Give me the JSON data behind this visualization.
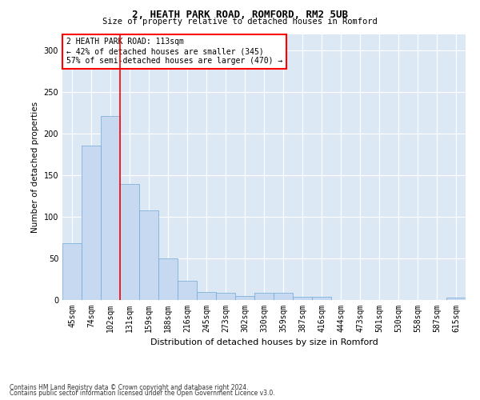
{
  "title1": "2, HEATH PARK ROAD, ROMFORD, RM2 5UB",
  "title2": "Size of property relative to detached houses in Romford",
  "xlabel": "Distribution of detached houses by size in Romford",
  "ylabel": "Number of detached properties",
  "annotation_line1": "2 HEATH PARK ROAD: 113sqm",
  "annotation_line2": "← 42% of detached houses are smaller (345)",
  "annotation_line3": "57% of semi-detached houses are larger (470) →",
  "categories": [
    "45sqm",
    "74sqm",
    "102sqm",
    "131sqm",
    "159sqm",
    "188sqm",
    "216sqm",
    "245sqm",
    "273sqm",
    "302sqm",
    "330sqm",
    "359sqm",
    "387sqm",
    "416sqm",
    "444sqm",
    "473sqm",
    "501sqm",
    "530sqm",
    "558sqm",
    "587sqm",
    "615sqm"
  ],
  "values": [
    68,
    186,
    221,
    140,
    108,
    50,
    23,
    10,
    9,
    5,
    9,
    9,
    4,
    4,
    0,
    0,
    0,
    0,
    0,
    0,
    3
  ],
  "bar_color": "#c6d9f1",
  "bar_edge_color": "#6fa8d6",
  "vline_color": "red",
  "vline_x_index": 2,
  "annotation_box_color": "red",
  "background_color": "#dde8f5",
  "ylim": [
    0,
    320
  ],
  "yticks": [
    0,
    50,
    100,
    150,
    200,
    250,
    300
  ],
  "footer1": "Contains HM Land Registry data © Crown copyright and database right 2024.",
  "footer2": "Contains public sector information licensed under the Open Government Licence v3.0."
}
